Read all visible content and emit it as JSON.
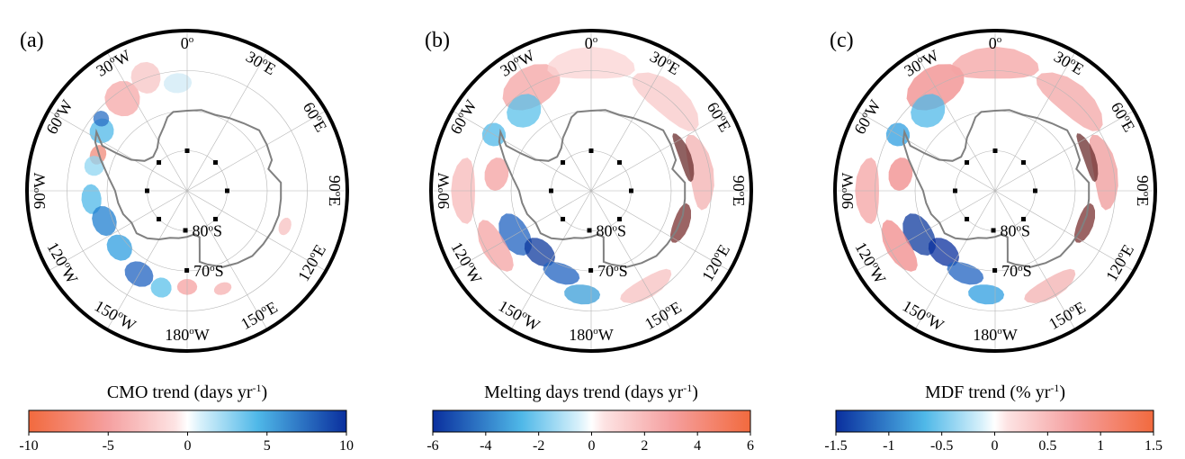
{
  "panels": [
    {
      "label": "(a)",
      "colorbar_title": "CMO trend (days yr",
      "colorbar_title_sup": "-1",
      "colorbar_title_end": ")",
      "colormap": "red_blue",
      "ticks": [
        "-10",
        "-5",
        "0",
        "5",
        "10"
      ],
      "range": [
        -10,
        10
      ]
    },
    {
      "label": "(b)",
      "colorbar_title": "Melting days trend (days yr",
      "colorbar_title_sup": "-1",
      "colorbar_title_end": ")",
      "colormap": "blue_red",
      "ticks": [
        "-6",
        "-4",
        "-2",
        "0",
        "2",
        "4",
        "6"
      ],
      "range": [
        -6,
        6
      ]
    },
    {
      "label": "(c)",
      "colorbar_title": "MDF trend (% yr",
      "colorbar_title_sup": "-1",
      "colorbar_title_end": ")",
      "colormap": "blue_red",
      "ticks": [
        "-1.5",
        "-1",
        "-0.5",
        "0",
        "0.5",
        "1",
        "1.5"
      ],
      "range": [
        -1.5,
        1.5
      ]
    }
  ],
  "map": {
    "projection": "south-polar-stereographic",
    "lon_labels": [
      {
        "lon": 0,
        "text": "0",
        "sup": "o",
        "suffix": ""
      },
      {
        "lon": 30,
        "text": "30",
        "sup": "o",
        "suffix": "E"
      },
      {
        "lon": 60,
        "text": "60",
        "sup": "o",
        "suffix": "E"
      },
      {
        "lon": 90,
        "text": "90",
        "sup": "o",
        "suffix": "E"
      },
      {
        "lon": 120,
        "text": "120",
        "sup": "o",
        "suffix": "E"
      },
      {
        "lon": 150,
        "text": "150",
        "sup": "o",
        "suffix": "E"
      },
      {
        "lon": 180,
        "text": "180",
        "sup": "o",
        "suffix": "W"
      },
      {
        "lon": -150,
        "text": "150",
        "sup": "o",
        "suffix": "W"
      },
      {
        "lon": -120,
        "text": "120",
        "sup": "o",
        "suffix": "W"
      },
      {
        "lon": -90,
        "text": "90",
        "sup": "o",
        "suffix": "W"
      },
      {
        "lon": -60,
        "text": "60",
        "sup": "o",
        "suffix": "W"
      },
      {
        "lon": -30,
        "text": "30",
        "sup": "o",
        "suffix": "W"
      }
    ],
    "lat_labels": [
      {
        "lat": -80,
        "text": "80",
        "sup": "o",
        "suffix": "S"
      },
      {
        "lat": -70,
        "text": "70",
        "sup": "o",
        "suffix": "S"
      }
    ]
  },
  "colors": {
    "strong_red": "#f26a3e",
    "light_red": "#f7b5b5",
    "dark_red": "#5a2323",
    "light_blue": "#8fd6f2",
    "mid_blue": "#2ea0dc",
    "strong_blue": "#0a2f9e",
    "coast": "#808080"
  }
}
